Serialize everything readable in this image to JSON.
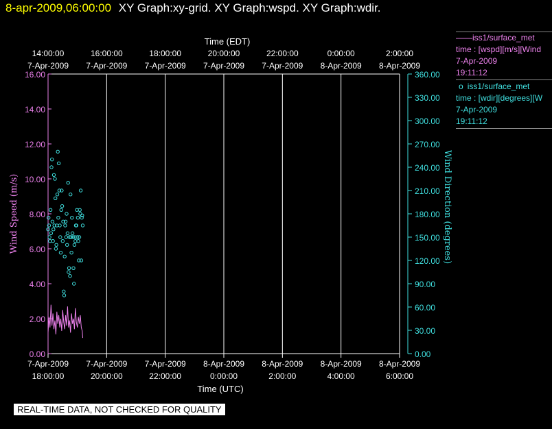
{
  "header": {
    "timestamp": "8-apr-2009,06:00:00",
    "graph_titles": "XY Graph:xy-grid.  XY Graph:wspd.  XY Graph:wdir."
  },
  "legend": [
    {
      "symbol": "——",
      "source": "iss1/surface_met",
      "expr": "time : [wspd][m/s][Wind",
      "date": "7-Apr-2009",
      "time": "19:11:12",
      "color": "#ee82ee"
    },
    {
      "symbol": "o",
      "source": "iss1/surface_met",
      "expr": "time : [wdir][degrees][W",
      "date": "7-Apr-2009",
      "time": "19:11:12",
      "color": "#40e0e0"
    }
  ],
  "note": "REAL-TIME DATA, NOT CHECKED FOR QUALITY",
  "chart_data": {
    "type": "line",
    "top_axis": {
      "label": "Time (EDT)",
      "ticks": [
        {
          "time": "14:00:00",
          "date": "7-Apr-2009"
        },
        {
          "time": "16:00:00",
          "date": "7-Apr-2009"
        },
        {
          "time": "18:00:00",
          "date": "7-Apr-2009"
        },
        {
          "time": "20:00:00",
          "date": "7-Apr-2009"
        },
        {
          "time": "22:00:00",
          "date": "7-Apr-2009"
        },
        {
          "time": "0:00:00",
          "date": "8-Apr-2009"
        },
        {
          "time": "2:00:00",
          "date": "8-Apr-2009"
        }
      ]
    },
    "bottom_axis": {
      "label": "Time (UTC)",
      "ticks": [
        {
          "date": "7-Apr-2009",
          "time": "18:00:00"
        },
        {
          "date": "7-Apr-2009",
          "time": "20:00:00"
        },
        {
          "date": "7-Apr-2009",
          "time": "22:00:00"
        },
        {
          "date": "8-Apr-2009",
          "time": "0:00:00"
        },
        {
          "date": "8-Apr-2009",
          "time": "2:00:00"
        },
        {
          "date": "8-Apr-2009",
          "time": "4:00:00"
        },
        {
          "date": "8-Apr-2009",
          "time": "6:00:00"
        }
      ],
      "range": [
        "2009-04-07T18:00Z",
        "2009-04-08T06:00Z"
      ]
    },
    "left_axis": {
      "label": "Wind Speed (m/s)",
      "range": [
        0,
        16
      ],
      "ticks": [
        "0.00",
        "2.00",
        "4.00",
        "6.00",
        "8.00",
        "10.00",
        "12.00",
        "14.00",
        "16.00"
      ],
      "color": "#ee82ee"
    },
    "right_axis": {
      "label": "Wind Direction (degrees)",
      "range": [
        0,
        360
      ],
      "ticks": [
        "0.00",
        "30.00",
        "60.00",
        "90.00",
        "120.00",
        "150.00",
        "180.00",
        "210.00",
        "240.00",
        "270.00",
        "300.00",
        "330.00",
        "360.00"
      ],
      "color": "#40e0e0"
    },
    "grid": "vertical",
    "series": [
      {
        "axis": "left",
        "color": "#ee82ee",
        "style": "line",
        "x": [
          "2009-04-07T18:00Z",
          "2009-04-07T18:02Z",
          "2009-04-07T18:04Z",
          "2009-04-07T18:06Z",
          "2009-04-07T18:08Z",
          "2009-04-07T18:10Z",
          "2009-04-07T18:12Z",
          "2009-04-07T18:14Z",
          "2009-04-07T18:16Z",
          "2009-04-07T18:18Z",
          "2009-04-07T18:20Z",
          "2009-04-07T18:22Z",
          "2009-04-07T18:24Z",
          "2009-04-07T18:26Z",
          "2009-04-07T18:28Z",
          "2009-04-07T18:30Z",
          "2009-04-07T18:32Z",
          "2009-04-07T18:34Z",
          "2009-04-07T18:36Z",
          "2009-04-07T18:38Z",
          "2009-04-07T18:40Z",
          "2009-04-07T18:42Z",
          "2009-04-07T18:44Z",
          "2009-04-07T18:46Z",
          "2009-04-07T18:48Z",
          "2009-04-07T18:50Z",
          "2009-04-07T18:52Z",
          "2009-04-07T18:54Z",
          "2009-04-07T18:56Z",
          "2009-04-07T18:58Z",
          "2009-04-07T19:00Z",
          "2009-04-07T19:02Z",
          "2009-04-07T19:04Z",
          "2009-04-07T19:06Z",
          "2009-04-07T19:08Z",
          "2009-04-07T19:10Z",
          "2009-04-07T19:11Z"
        ],
        "y": [
          1.2,
          2.1,
          1.5,
          2.8,
          1.6,
          2.3,
          1.4,
          1.9,
          1.1,
          2.4,
          1.7,
          2.2,
          1.5,
          2.0,
          1.3,
          2.5,
          1.8,
          1.4,
          2.2,
          1.6,
          2.7,
          1.5,
          1.9,
          1.2,
          2.3,
          1.7,
          2.0,
          1.4,
          2.6,
          1.8,
          1.5,
          2.1,
          1.7,
          2.2,
          1.5,
          1.3,
          0.9
        ]
      },
      {
        "axis": "right",
        "color": "#40e0e0",
        "style": "markers",
        "x": [
          "2009-04-07T18:00Z",
          "2009-04-07T18:01Z",
          "2009-04-07T18:02Z",
          "2009-04-07T18:03Z",
          "2009-04-07T18:04Z",
          "2009-04-07T18:05Z",
          "2009-04-07T18:06Z",
          "2009-04-07T18:07Z",
          "2009-04-07T18:08Z",
          "2009-04-07T18:09Z",
          "2009-04-07T18:10Z",
          "2009-04-07T18:11Z",
          "2009-04-07T18:12Z",
          "2009-04-07T18:13Z",
          "2009-04-07T18:14Z",
          "2009-04-07T18:15Z",
          "2009-04-07T18:16Z",
          "2009-04-07T18:17Z",
          "2009-04-07T18:18Z",
          "2009-04-07T18:19Z",
          "2009-04-07T18:20Z",
          "2009-04-07T18:21Z",
          "2009-04-07T18:22Z",
          "2009-04-07T18:23Z",
          "2009-04-07T18:24Z",
          "2009-04-07T18:25Z",
          "2009-04-07T18:26Z",
          "2009-04-07T18:27Z",
          "2009-04-07T18:28Z",
          "2009-04-07T18:29Z",
          "2009-04-07T18:30Z",
          "2009-04-07T18:31Z",
          "2009-04-07T18:32Z",
          "2009-04-07T18:33Z",
          "2009-04-07T18:34Z",
          "2009-04-07T18:35Z",
          "2009-04-07T18:36Z",
          "2009-04-07T18:37Z",
          "2009-04-07T18:38Z",
          "2009-04-07T18:39Z",
          "2009-04-07T18:40Z",
          "2009-04-07T18:41Z",
          "2009-04-07T18:42Z",
          "2009-04-07T18:43Z",
          "2009-04-07T18:44Z",
          "2009-04-07T18:45Z",
          "2009-04-07T18:46Z",
          "2009-04-07T18:47Z",
          "2009-04-07T18:48Z",
          "2009-04-07T18:49Z",
          "2009-04-07T18:50Z",
          "2009-04-07T18:51Z",
          "2009-04-07T18:52Z",
          "2009-04-07T18:53Z",
          "2009-04-07T18:54Z",
          "2009-04-07T18:55Z",
          "2009-04-07T18:56Z",
          "2009-04-07T18:57Z",
          "2009-04-07T18:58Z",
          "2009-04-07T18:59Z",
          "2009-04-07T19:00Z",
          "2009-04-07T19:01Z",
          "2009-04-07T19:02Z",
          "2009-04-07T19:03Z",
          "2009-04-07T19:04Z",
          "2009-04-07T19:05Z",
          "2009-04-07T19:06Z",
          "2009-04-07T19:07Z",
          "2009-04-07T19:08Z",
          "2009-04-07T19:09Z",
          "2009-04-07T19:10Z",
          "2009-04-07T19:11Z"
        ],
        "y": [
          160,
          175,
          165,
          150,
          145,
          185,
          155,
          240,
          250,
          170,
          145,
          160,
          230,
          165,
          225,
          200,
          135,
          140,
          165,
          205,
          260,
          175,
          245,
          210,
          165,
          150,
          130,
          185,
          210,
          190,
          145,
          170,
          80,
          75,
          125,
          165,
          170,
          150,
          180,
          140,
          155,
          220,
          105,
          110,
          150,
          100,
          205,
          150,
          130,
          175,
          155,
          150,
          110,
          90,
          140,
          150,
          145,
          165,
          165,
          185,
          150,
          175,
          145,
          120,
          150,
          185,
          180,
          210,
          120,
          175,
          178,
          165
        ]
      }
    ]
  }
}
